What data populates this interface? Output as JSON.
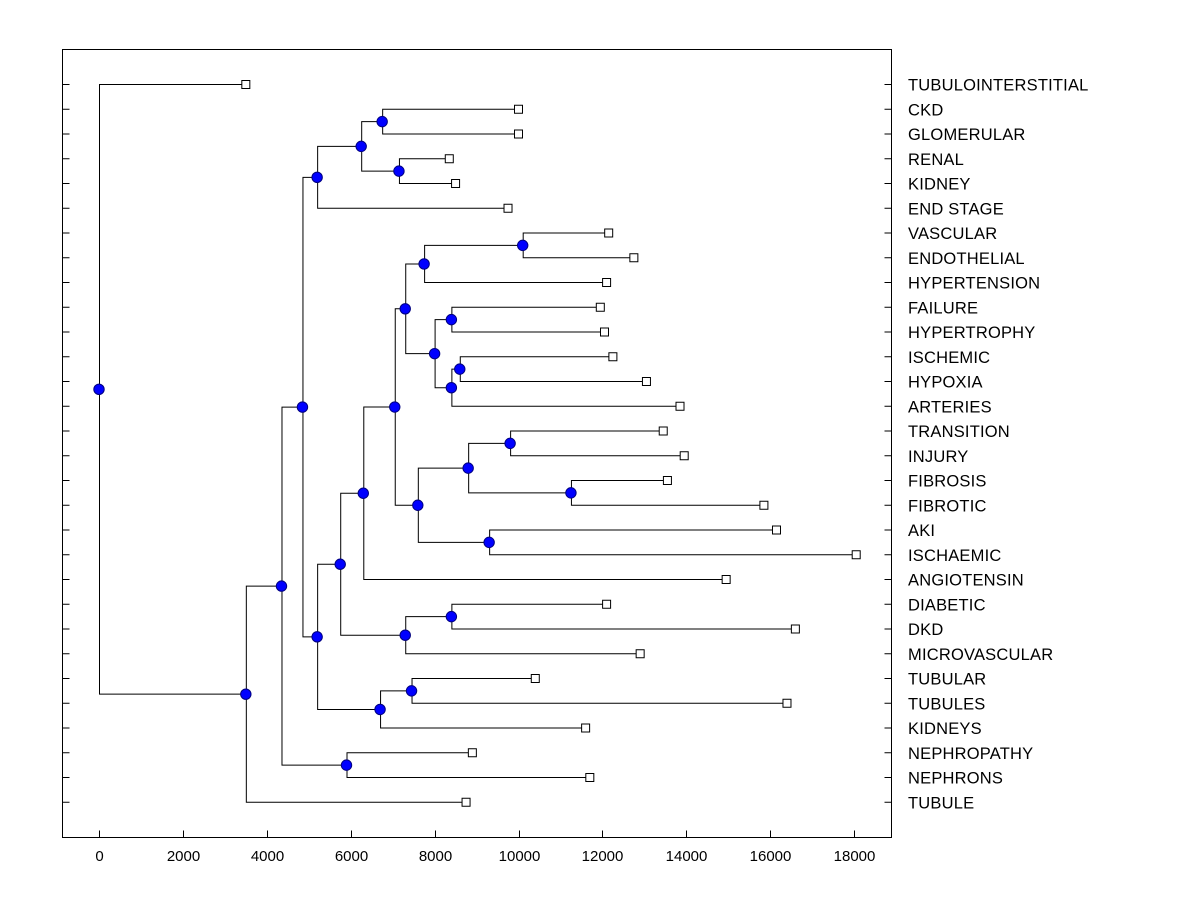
{
  "chart_data": {
    "type": "dendrogram",
    "title": "",
    "xlabel": "",
    "ylabel": "",
    "xlim": [
      -900,
      18900
    ],
    "x_ticks": [
      0,
      2000,
      4000,
      6000,
      8000,
      10000,
      12000,
      14000,
      16000,
      18000
    ],
    "x_tick_labels": [
      "0",
      "2000",
      "4000",
      "6000",
      "8000",
      "10000",
      "12000",
      "14000",
      "16000",
      "18000"
    ],
    "leaves": [
      {
        "label": "TUBULOINTERSTITIAL",
        "x": 3500
      },
      {
        "label": "CKD",
        "x": 10000
      },
      {
        "label": "GLOMERULAR",
        "x": 10000
      },
      {
        "label": "RENAL",
        "x": 8350
      },
      {
        "label": "KIDNEY",
        "x": 8500
      },
      {
        "label": "END STAGE",
        "x": 9750
      },
      {
        "label": "VASCULAR",
        "x": 12150
      },
      {
        "label": "ENDOTHELIAL",
        "x": 12750
      },
      {
        "label": "HYPERTENSION",
        "x": 12100
      },
      {
        "label": "FAILURE",
        "x": 11950
      },
      {
        "label": "HYPERTROPHY",
        "x": 12050
      },
      {
        "label": "ISCHEMIC",
        "x": 12250
      },
      {
        "label": "HYPOXIA",
        "x": 13050
      },
      {
        "label": "ARTERIES",
        "x": 13850
      },
      {
        "label": "TRANSITION",
        "x": 13450
      },
      {
        "label": "INJURY",
        "x": 13950
      },
      {
        "label": "FIBROSIS",
        "x": 13550
      },
      {
        "label": "FIBROTIC",
        "x": 15850
      },
      {
        "label": "AKI",
        "x": 16150
      },
      {
        "label": "ISCHAEMIC",
        "x": 18050
      },
      {
        "label": "ANGIOTENSIN",
        "x": 14950
      },
      {
        "label": "DIABETIC",
        "x": 12100
      },
      {
        "label": "DKD",
        "x": 16600
      },
      {
        "label": "MICROVASCULAR",
        "x": 12900
      },
      {
        "label": "TUBULAR",
        "x": 10400
      },
      {
        "label": "TUBULES",
        "x": 16400
      },
      {
        "label": "KIDNEYS",
        "x": 11600
      },
      {
        "label": "NEPHROPATHY",
        "x": 8900
      },
      {
        "label": "NEPHRONS",
        "x": 11700
      },
      {
        "label": "TUBULE",
        "x": 8750
      }
    ],
    "merges": [
      {
        "id": "n01",
        "x": 6750,
        "children": [
          "L1",
          "L2"
        ]
      },
      {
        "id": "n02",
        "x": 7150,
        "children": [
          "L3",
          "L4"
        ]
      },
      {
        "id": "n03",
        "x": 6250,
        "children": [
          "n01",
          "n02"
        ]
      },
      {
        "id": "n04",
        "x": 5200,
        "children": [
          "n03",
          "L5"
        ]
      },
      {
        "id": "n05",
        "x": 10100,
        "children": [
          "L6",
          "L7"
        ]
      },
      {
        "id": "n06",
        "x": 7750,
        "children": [
          "n05",
          "L8"
        ]
      },
      {
        "id": "n07",
        "x": 8400,
        "children": [
          "L9",
          "L10"
        ]
      },
      {
        "id": "n08",
        "x": 8600,
        "children": [
          "L11",
          "L12"
        ]
      },
      {
        "id": "n09",
        "x": 8400,
        "children": [
          "n08",
          "L13"
        ]
      },
      {
        "id": "n10",
        "x": 8000,
        "children": [
          "n07",
          "n09"
        ]
      },
      {
        "id": "n11",
        "x": 7300,
        "children": [
          "n06",
          "n10"
        ]
      },
      {
        "id": "n12",
        "x": 9800,
        "children": [
          "L14",
          "L15"
        ]
      },
      {
        "id": "n13",
        "x": 11250,
        "children": [
          "L16",
          "L17"
        ]
      },
      {
        "id": "n14",
        "x": 8800,
        "children": [
          "n12",
          "n13"
        ]
      },
      {
        "id": "n15",
        "x": 9300,
        "children": [
          "L18",
          "L19"
        ]
      },
      {
        "id": "n16",
        "x": 7600,
        "children": [
          "n14",
          "n15"
        ]
      },
      {
        "id": "n17",
        "x": 7050,
        "children": [
          "n11",
          "n16"
        ]
      },
      {
        "id": "n18",
        "x": 6300,
        "children": [
          "n17",
          "L20"
        ]
      },
      {
        "id": "n19",
        "x": 8400,
        "children": [
          "L21",
          "L22"
        ]
      },
      {
        "id": "n20",
        "x": 7300,
        "children": [
          "n19",
          "L23"
        ]
      },
      {
        "id": "n21",
        "x": 5750,
        "children": [
          "n18",
          "n20"
        ]
      },
      {
        "id": "n22",
        "x": 7450,
        "children": [
          "L24",
          "L25"
        ]
      },
      {
        "id": "n23",
        "x": 6700,
        "children": [
          "n22",
          "L26"
        ]
      },
      {
        "id": "n24",
        "x": 5200,
        "children": [
          "n21",
          "n23"
        ]
      },
      {
        "id": "n25",
        "x": 4850,
        "children": [
          "n04",
          "n24"
        ]
      },
      {
        "id": "n26",
        "x": 5900,
        "children": [
          "L27",
          "L28"
        ]
      },
      {
        "id": "n27",
        "x": 4350,
        "children": [
          "n25",
          "n26"
        ]
      },
      {
        "id": "n28",
        "x": 3500,
        "children": [
          "n27",
          "L29"
        ]
      },
      {
        "id": "n29",
        "x": 0,
        "children": [
          "L0",
          "n28"
        ]
      }
    ],
    "colors": {
      "node_fill": "#0000ff",
      "node_stroke": "#000080",
      "leaf_fill": "#ffffff",
      "line": "#000000",
      "axes": "#000000",
      "background": "#ffffff"
    }
  }
}
